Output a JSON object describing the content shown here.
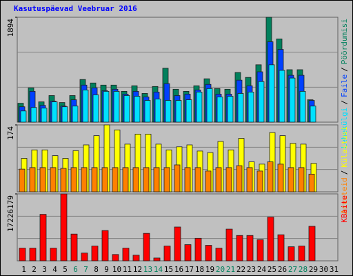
{
  "title": "Kasutuspäevad Veebruar 2016",
  "legend_separator": "/",
  "chart_data": [
    {
      "type": "bar",
      "ylim": [
        0,
        1894
      ],
      "yticks": [
        1894
      ],
      "series": [
        {
          "name": "Pöördumisi",
          "color": "#00805c",
          "values": [
            341,
            619,
            366,
            480,
            354,
            480,
            770,
            707,
            669,
            669,
            556,
            657,
            518,
            644,
            973,
            594,
            556,
            657,
            783,
            606,
            594,
            897,
            808,
            1036,
            1894,
            1503,
            947,
            947,
            404,
            null,
            null
          ]
        },
        {
          "name": "Faile",
          "color": "#0040ff",
          "values": [
            278,
            556,
            303,
            379,
            290,
            404,
            669,
            619,
            568,
            594,
            505,
            556,
            455,
            543,
            695,
            480,
            505,
            581,
            682,
            505,
            505,
            758,
            657,
            909,
            1452,
            1314,
            846,
            846,
            392,
            null,
            null
          ]
        },
        {
          "name": "Lehekülgi",
          "color": "#00e0ff",
          "values": [
            202,
            265,
            253,
            366,
            278,
            290,
            581,
            493,
            556,
            556,
            480,
            467,
            392,
            417,
            392,
            392,
            404,
            543,
            606,
            455,
            467,
            518,
            543,
            733,
            1036,
            935,
            796,
            556,
            290,
            null,
            null
          ]
        }
      ]
    },
    {
      "type": "bar",
      "ylim": [
        0,
        174
      ],
      "yticks": [
        174
      ],
      "series": [
        {
          "name": "Külastusi",
          "color": "#ffff00",
          "values": [
            87,
            109,
            109,
            94,
            87,
            107,
            122,
            146,
            174,
            161,
            124,
            150,
            150,
            124,
            109,
            117,
            122,
            106,
            102,
            131,
            109,
            139,
            78,
            72,
            154,
            146,
            126,
            124,
            74,
            null,
            null
          ]
        },
        {
          "name": "Arvuteid",
          "color": "#ff8000",
          "values": [
            59,
            63,
            63,
            63,
            61,
            63,
            63,
            63,
            63,
            63,
            63,
            63,
            63,
            63,
            63,
            70,
            63,
            63,
            54,
            63,
            63,
            68,
            63,
            54,
            78,
            72,
            63,
            63,
            46,
            null,
            null
          ]
        }
      ]
    },
    {
      "type": "bar",
      "ylim": [
        0,
        17226179
      ],
      "yticks": [
        17226179
      ],
      "categories": [
        "1",
        "2",
        "3",
        "4",
        "5",
        "6",
        "7",
        "8",
        "9",
        "10",
        "11",
        "12",
        "13",
        "14",
        "15",
        "16",
        "17",
        "18",
        "19",
        "20",
        "21",
        "22",
        "23",
        "24",
        "25",
        "26",
        "27",
        "28",
        "29",
        "30",
        "31"
      ],
      "category_colors": [
        "#000000",
        "#000000",
        "#000000",
        "#000000",
        "#000000",
        "#00805c",
        "#00805c",
        "#000000",
        "#000000",
        "#000000",
        "#000000",
        "#000000",
        "#00805c",
        "#00805c",
        "#000000",
        "#000000",
        "#000000",
        "#000000",
        "#000000",
        "#00805c",
        "#00805c",
        "#000000",
        "#000000",
        "#000000",
        "#000000",
        "#000000",
        "#00805c",
        "#00805c",
        "#000000",
        "#000000",
        "#000000"
      ],
      "series": [
        {
          "name": "KBaite",
          "color": "#ff0000",
          "values": [
            3263904,
            3263904,
            11967648,
            3263904,
            17226179,
            6890464,
            1994608,
            3807888,
            7797104,
            1631952,
            3263904,
            1450624,
            7071792,
            725312,
            3807888,
            8703744,
            4170544,
            5802496,
            3989216,
            3263904,
            8159760,
            6527808,
            6527808,
            5439840,
            11242336,
            6709136,
            3626560,
            3807888,
            8885072,
            null,
            null
          ]
        }
      ]
    }
  ]
}
